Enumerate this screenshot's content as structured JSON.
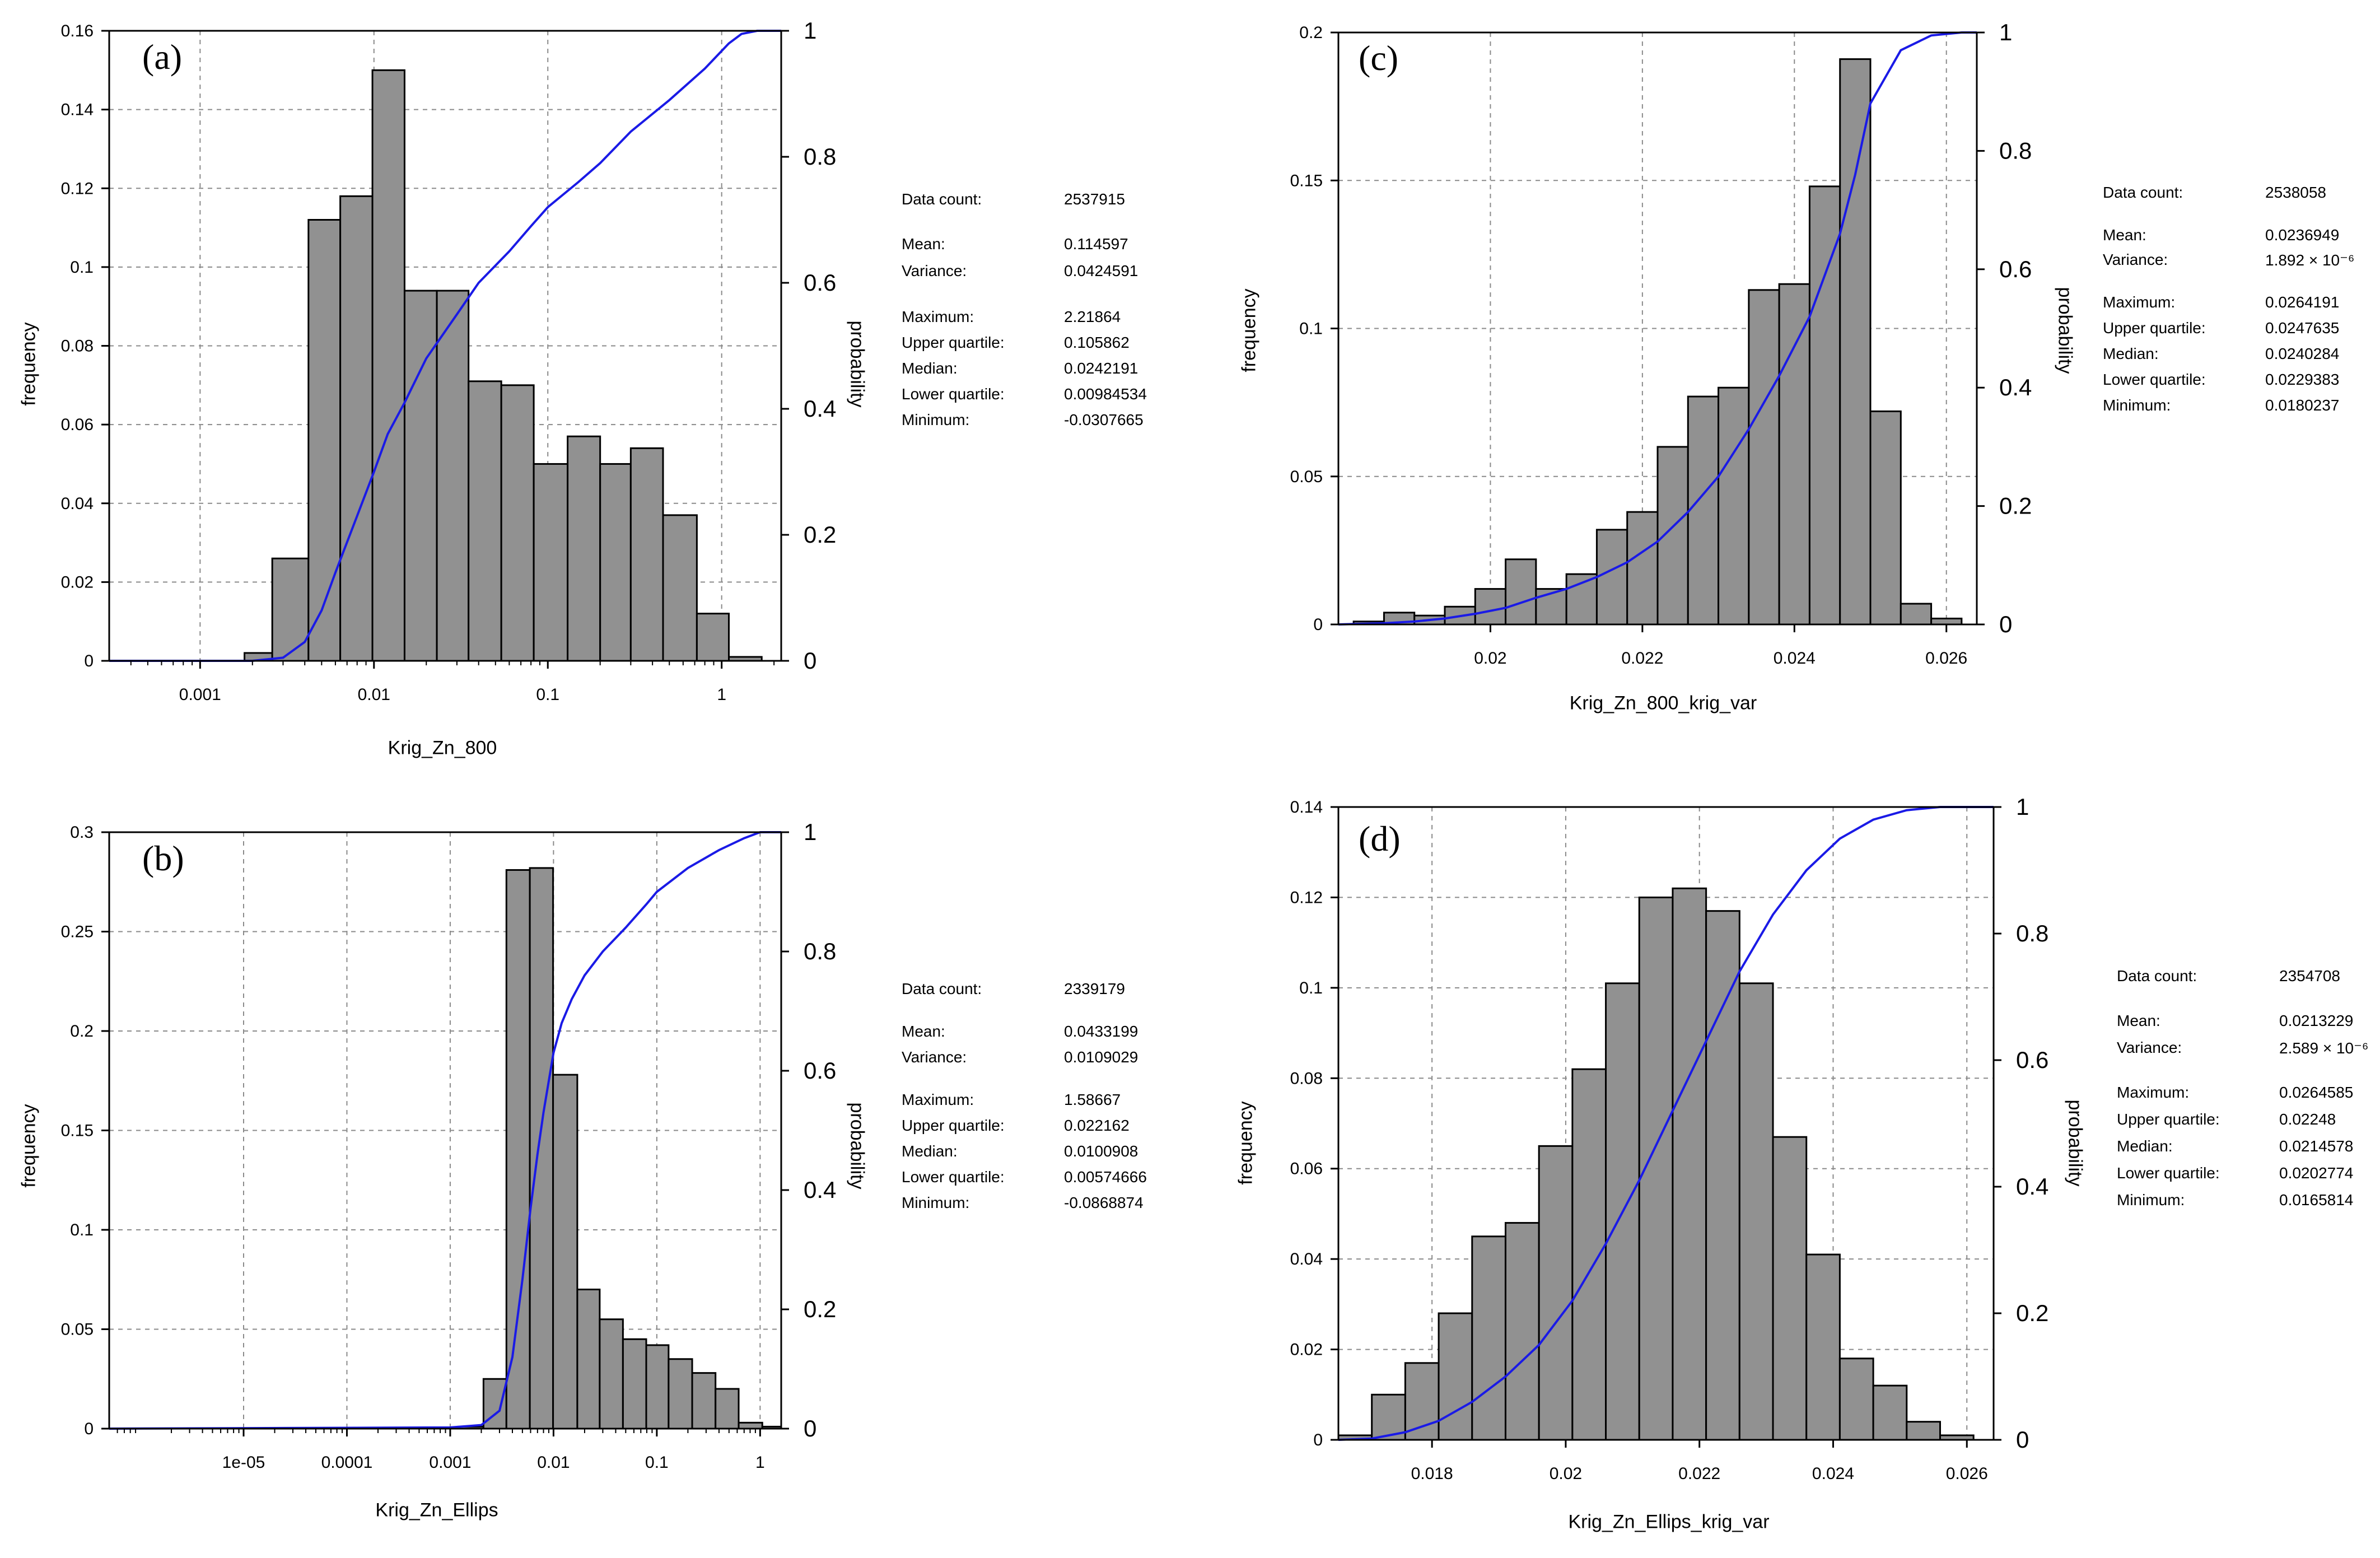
{
  "chart_data": [
    {
      "type": "bar",
      "panel_label": "(a)",
      "xlabel": "Krig_Zn_800",
      "ylabel": "frequency",
      "y2label": "probability",
      "x_scale": "log",
      "xlim": [
        0.0003,
        2.2
      ],
      "ylim": [
        0,
        0.16
      ],
      "y2lim": [
        0,
        1
      ],
      "x_ticks": [
        0.001,
        0.01,
        0.1,
        1
      ],
      "x_tick_labels": [
        "0.001",
        "0.01",
        "0.1",
        "1"
      ],
      "y_ticks": [
        0,
        0.02,
        0.04,
        0.06,
        0.08,
        0.1,
        0.12,
        0.14,
        0.16
      ],
      "y_tick_labels": [
        "0",
        "0.02",
        "0.04",
        "0.06",
        "0.08",
        "0.1",
        "0.12",
        "0.14",
        "0.16"
      ],
      "y2_ticks": [
        0,
        0.2,
        0.4,
        0.6,
        0.8,
        1
      ],
      "y2_tick_labels": [
        "0",
        "0.2",
        "0.4",
        "0.6",
        "0.8",
        "1"
      ],
      "grid": true,
      "bin_edges": [
        0.0018,
        0.0026,
        0.0042,
        0.0064,
        0.0098,
        0.015,
        0.023,
        0.035,
        0.054,
        0.083,
        0.13,
        0.2,
        0.3,
        0.46,
        0.72,
        1.1,
        1.7
      ],
      "values": [
        0.002,
        0.026,
        0.112,
        0.118,
        0.15,
        0.094,
        0.094,
        0.071,
        0.07,
        0.05,
        0.057,
        0.05,
        0.054,
        0.037,
        0.012,
        0.001
      ],
      "cdf": {
        "x": [
          0.0003,
          0.002,
          0.003,
          0.004,
          0.005,
          0.006,
          0.008,
          0.01,
          0.012,
          0.015,
          0.02,
          0.03,
          0.04,
          0.06,
          0.08,
          0.1,
          0.15,
          0.2,
          0.3,
          0.5,
          0.8,
          1.1,
          1.3,
          1.6,
          2.2
        ],
        "y": [
          0,
          0,
          0.005,
          0.03,
          0.08,
          0.14,
          0.23,
          0.3,
          0.36,
          0.41,
          0.48,
          0.55,
          0.6,
          0.65,
          0.69,
          0.72,
          0.76,
          0.79,
          0.84,
          0.89,
          0.94,
          0.98,
          0.995,
          1,
          1
        ]
      },
      "stats": [
        {
          "key": "Data count:",
          "value": "2537915"
        },
        {
          "key": "Mean:",
          "value": "0.114597"
        },
        {
          "key": "Variance:",
          "value": "0.0424591"
        },
        {
          "key": "Maximum:",
          "value": "2.21864"
        },
        {
          "key": "Upper quartile:",
          "value": "0.105862"
        },
        {
          "key": "Median:",
          "value": "0.0242191"
        },
        {
          "key": "Lower quartile:",
          "value": "0.00984534"
        },
        {
          "key": "Minimum:",
          "value": "-0.0307665"
        }
      ]
    },
    {
      "type": "bar",
      "panel_label": "(b)",
      "xlabel": "Krig_Zn_Ellips",
      "ylabel": "frequency",
      "y2label": "probability",
      "x_scale": "log",
      "xlim": [
        5e-07,
        1.6
      ],
      "ylim": [
        0,
        0.3
      ],
      "y2lim": [
        0,
        1
      ],
      "x_ticks": [
        1e-05,
        0.0001,
        0.001,
        0.01,
        0.1,
        1
      ],
      "x_tick_labels": [
        "1e-05",
        "0.0001",
        "0.001",
        "0.01",
        "0.1",
        "1"
      ],
      "y_ticks": [
        0,
        0.05,
        0.1,
        0.15,
        0.2,
        0.25,
        0.3
      ],
      "y_tick_labels": [
        "0",
        "0.05",
        "0.1",
        "0.15",
        "0.2",
        "0.25",
        "0.3"
      ],
      "y2_ticks": [
        0,
        0.2,
        0.4,
        0.6,
        0.8,
        1
      ],
      "y2_tick_labels": [
        "0",
        "0.2",
        "0.4",
        "0.6",
        "0.8",
        "1"
      ],
      "grid": true,
      "bin_edges": [
        0.0012,
        0.0021,
        0.0035,
        0.0059,
        0.0099,
        0.017,
        0.028,
        0.047,
        0.079,
        0.13,
        0.22,
        0.37,
        0.62,
        1.05,
        1.6
      ],
      "values": [
        0.001,
        0.025,
        0.281,
        0.282,
        0.178,
        0.07,
        0.055,
        0.045,
        0.042,
        0.035,
        0.028,
        0.02,
        0.003,
        0.001
      ],
      "cdf": {
        "x": [
          5e-07,
          0.001,
          0.002,
          0.003,
          0.004,
          0.005,
          0.006,
          0.007,
          0.008,
          0.01,
          0.012,
          0.015,
          0.02,
          0.03,
          0.05,
          0.08,
          0.1,
          0.2,
          0.4,
          0.7,
          1.0,
          1.6
        ],
        "y": [
          0,
          0.002,
          0.006,
          0.03,
          0.12,
          0.25,
          0.37,
          0.46,
          0.53,
          0.63,
          0.68,
          0.72,
          0.76,
          0.8,
          0.84,
          0.88,
          0.9,
          0.94,
          0.97,
          0.99,
          1,
          1
        ]
      },
      "stats": [
        {
          "key": "Data count:",
          "value": "2339179"
        },
        {
          "key": "Mean:",
          "value": "0.0433199"
        },
        {
          "key": "Variance:",
          "value": "0.0109029"
        },
        {
          "key": "Maximum:",
          "value": "1.58667"
        },
        {
          "key": "Upper quartile:",
          "value": "0.022162"
        },
        {
          "key": "Median:",
          "value": "0.0100908"
        },
        {
          "key": "Lower quartile:",
          "value": "0.00574666"
        },
        {
          "key": "Minimum:",
          "value": "-0.0868874"
        }
      ]
    },
    {
      "type": "bar",
      "panel_label": "(c)",
      "xlabel": "Krig_Zn_800_krig_var",
      "ylabel": "frequency",
      "y2label": "probability",
      "x_scale": "linear",
      "xlim": [
        0.018,
        0.0264
      ],
      "ylim": [
        0,
        0.2
      ],
      "y2lim": [
        0,
        1
      ],
      "x_ticks": [
        0.02,
        0.022,
        0.024,
        0.026
      ],
      "x_tick_labels": [
        "0.02",
        "0.022",
        "0.024",
        "0.026"
      ],
      "y_ticks": [
        0,
        0.05,
        0.1,
        0.15,
        0.2
      ],
      "y_tick_labels": [
        "0",
        "0.05",
        "0.1",
        "0.15",
        "0.2"
      ],
      "y2_ticks": [
        0,
        0.2,
        0.4,
        0.6,
        0.8,
        1
      ],
      "y2_tick_labels": [
        "0",
        "0.2",
        "0.4",
        "0.6",
        "0.8",
        "1"
      ],
      "grid": true,
      "bin_edges": [
        0.0182,
        0.0186,
        0.019,
        0.0194,
        0.0198,
        0.0202,
        0.0206,
        0.021,
        0.0214,
        0.0218,
        0.0222,
        0.0226,
        0.023,
        0.0234,
        0.0238,
        0.0242,
        0.0246,
        0.025,
        0.0254,
        0.0258,
        0.0262
      ],
      "values": [
        0.001,
        0.004,
        0.003,
        0.006,
        0.012,
        0.022,
        0.012,
        0.017,
        0.032,
        0.038,
        0.06,
        0.077,
        0.08,
        0.113,
        0.115,
        0.148,
        0.191,
        0.072,
        0.007,
        0.002
      ],
      "cdf": {
        "x": [
          0.018,
          0.0186,
          0.019,
          0.0194,
          0.0198,
          0.0202,
          0.0206,
          0.021,
          0.0214,
          0.0218,
          0.0222,
          0.0226,
          0.023,
          0.0234,
          0.0238,
          0.0242,
          0.0246,
          0.0248,
          0.025,
          0.0254,
          0.0258,
          0.0262,
          0.0264
        ],
        "y": [
          0,
          0.002,
          0.005,
          0.01,
          0.018,
          0.028,
          0.045,
          0.06,
          0.08,
          0.105,
          0.14,
          0.19,
          0.25,
          0.33,
          0.42,
          0.52,
          0.66,
          0.76,
          0.88,
          0.97,
          0.995,
          1,
          1
        ]
      },
      "stats": [
        {
          "key": "Data count:",
          "value": "2538058"
        },
        {
          "key": "Mean:",
          "value": "0.0236949"
        },
        {
          "key": "Variance:",
          "value": "1.892 × 10⁻⁶"
        },
        {
          "key": "Maximum:",
          "value": "0.0264191"
        },
        {
          "key": "Upper quartile:",
          "value": "0.0247635"
        },
        {
          "key": "Median:",
          "value": "0.0240284"
        },
        {
          "key": "Lower quartile:",
          "value": "0.0229383"
        },
        {
          "key": "Minimum:",
          "value": "0.0180237"
        }
      ]
    },
    {
      "type": "bar",
      "panel_label": "(d)",
      "xlabel": "Krig_Zn_Ellips_krig_var",
      "ylabel": "frequency",
      "y2label": "probability",
      "x_scale": "linear",
      "xlim": [
        0.0166,
        0.0264
      ],
      "ylim": [
        0,
        0.14
      ],
      "y2lim": [
        0,
        1
      ],
      "x_ticks": [
        0.018,
        0.02,
        0.022,
        0.024,
        0.026
      ],
      "x_tick_labels": [
        "0.018",
        "0.02",
        "0.022",
        "0.024",
        "0.026"
      ],
      "y_ticks": [
        0,
        0.02,
        0.04,
        0.06,
        0.08,
        0.1,
        0.12,
        0.14
      ],
      "y_tick_labels": [
        "0",
        "0.02",
        "0.04",
        "0.06",
        "0.08",
        "0.1",
        "0.12",
        "0.14"
      ],
      "y2_ticks": [
        0,
        0.2,
        0.4,
        0.6,
        0.8,
        1
      ],
      "y2_tick_labels": [
        "0",
        "0.2",
        "0.4",
        "0.6",
        "0.8",
        "1"
      ],
      "grid": true,
      "bin_edges": [
        0.0166,
        0.0171,
        0.0176,
        0.0181,
        0.0186,
        0.0191,
        0.0196,
        0.0201,
        0.0206,
        0.0211,
        0.0216,
        0.0221,
        0.0226,
        0.0231,
        0.0236,
        0.0241,
        0.0246,
        0.0251,
        0.0256,
        0.0261
      ],
      "values": [
        0.001,
        0.01,
        0.017,
        0.028,
        0.045,
        0.048,
        0.065,
        0.082,
        0.101,
        0.12,
        0.122,
        0.117,
        0.101,
        0.067,
        0.041,
        0.018,
        0.012,
        0.004,
        0.001
      ],
      "cdf": {
        "x": [
          0.0166,
          0.0171,
          0.0176,
          0.0181,
          0.0186,
          0.0191,
          0.0196,
          0.0201,
          0.0206,
          0.0211,
          0.0216,
          0.0221,
          0.0226,
          0.0231,
          0.0236,
          0.0241,
          0.0246,
          0.0251,
          0.0256,
          0.0261,
          0.0264
        ],
        "y": [
          0,
          0.002,
          0.012,
          0.03,
          0.06,
          0.1,
          0.15,
          0.22,
          0.31,
          0.41,
          0.52,
          0.63,
          0.74,
          0.83,
          0.9,
          0.95,
          0.98,
          0.995,
          1,
          1,
          1
        ]
      },
      "stats": [
        {
          "key": "Data count:",
          "value": "2354708"
        },
        {
          "key": "Mean:",
          "value": "0.0213229"
        },
        {
          "key": "Variance:",
          "value": "2.589 × 10⁻⁶"
        },
        {
          "key": "Maximum:",
          "value": "0.0264585"
        },
        {
          "key": "Upper quartile:",
          "value": "0.02248"
        },
        {
          "key": "Median:",
          "value": "0.0214578"
        },
        {
          "key": "Lower quartile:",
          "value": "0.0202774"
        },
        {
          "key": "Minimum:",
          "value": "0.0165814"
        }
      ]
    }
  ],
  "colors": {
    "bar_fill": "#919191",
    "bar_stroke": "#000000",
    "cdf_line": "#1a1ae6",
    "grid": "#8a8a8a"
  }
}
